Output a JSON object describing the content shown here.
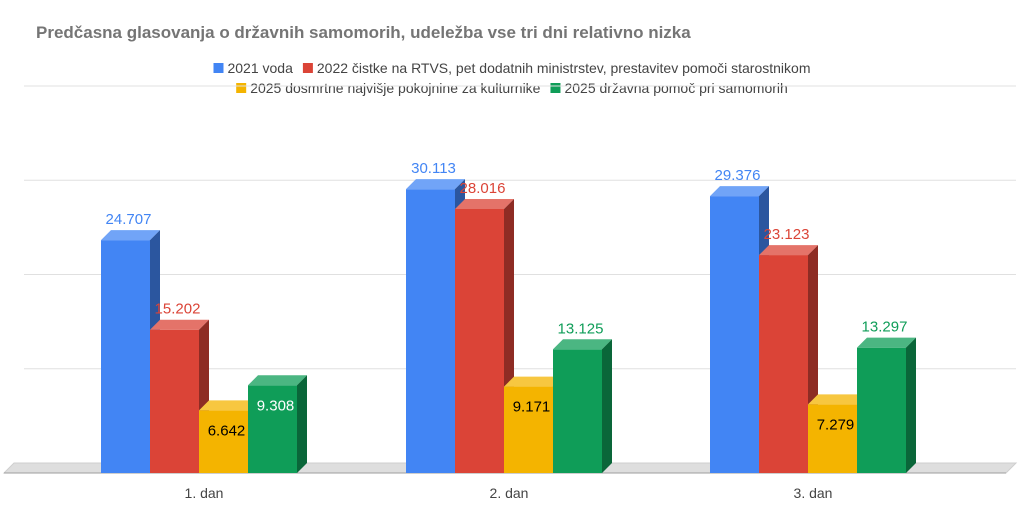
{
  "chart_data": {
    "type": "bar",
    "title": "Predčasna glasovanja o državnih samomorih, udeležba vse tri dni relativno nizka",
    "categories": [
      "1. dan",
      "2. dan",
      "3. dan"
    ],
    "series": [
      {
        "name": "2021 voda",
        "values": [
          24707,
          30113,
          29376
        ],
        "labels": [
          "24.707",
          "30.113",
          "29.376"
        ],
        "color": "#4285F4",
        "label_color": "#4285F4"
      },
      {
        "name": "2022 čistke na RTVS, pet dodatnih ministrstev, prestavitev pomoči starostnikom",
        "values": [
          15202,
          28016,
          23123
        ],
        "labels": [
          "15.202",
          "28.016",
          "23.123"
        ],
        "color": "#DB4437",
        "label_color": "#DB4437"
      },
      {
        "name": "2025 dosmrtne najvišje pokojnine za kulturnike",
        "values": [
          6642,
          9171,
          7279
        ],
        "labels": [
          "6.642",
          "9.171",
          "7.279"
        ],
        "color": "#F4B400",
        "label_color": "#000000"
      },
      {
        "name": "2025 državna pomoč pri samomorih",
        "values": [
          9308,
          13125,
          13297
        ],
        "labels": [
          "9.308",
          "13.125",
          "13.297"
        ],
        "color": "#0F9D58",
        "label_color": "#0F9D58"
      }
    ],
    "ylim": [
      0,
      40000
    ],
    "grid": true,
    "legend": "top",
    "three_d": true
  }
}
